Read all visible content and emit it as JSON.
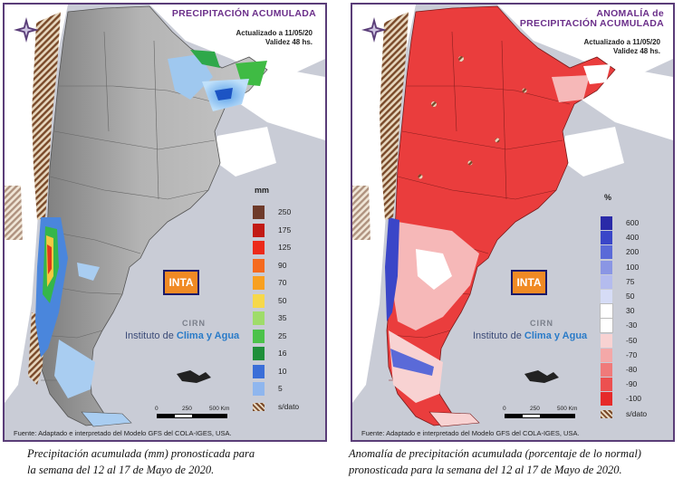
{
  "left_panel": {
    "title": "PRECIPITACIÓN ACUMULADA",
    "updated": "Actualizado a 11/05/20",
    "validity": "Validez 48 hs.",
    "legend_unit": "mm",
    "legend": [
      {
        "label": "250",
        "color": "#6e3a2a"
      },
      {
        "label": "175",
        "color": "#c21a14"
      },
      {
        "label": "125",
        "color": "#ec2a1a"
      },
      {
        "label": "90",
        "color": "#f56a1e"
      },
      {
        "label": "70",
        "color": "#f8a020"
      },
      {
        "label": "50",
        "color": "#f6d84a"
      },
      {
        "label": "35",
        "color": "#9fdc6a"
      },
      {
        "label": "25",
        "color": "#4cc24a"
      },
      {
        "label": "16",
        "color": "#1f8f3a"
      },
      {
        "label": "10",
        "color": "#3a6ed8"
      },
      {
        "label": "5",
        "color": "#8fb6ee"
      },
      {
        "label": "s/dato",
        "color": "hatch"
      }
    ],
    "logo_text": "INTA",
    "cirn": "CIRN",
    "institute_a": "Instituto de ",
    "institute_b": "Clima y Agua",
    "scale_labels": [
      "0",
      "250",
      "500 Km"
    ],
    "source": "Fuente: Adaptado e interpretado del Modelo GFS del COLA-IGES, USA.",
    "caption_line1": "Precipitación acumulada (mm) pronosticada para",
    "caption_line2": "la semana del 12 al 17 de Mayo de 2020."
  },
  "right_panel": {
    "title_line1": "ANOMALÍA de",
    "title_line2": "PRECIPITACIÓN ACUMULADA",
    "updated": "Actualizado a 11/05/20",
    "validity": "Validez 48 hs.",
    "legend_unit": "%",
    "legend": [
      {
        "label": "600",
        "color": "#2a2aa8"
      },
      {
        "label": "400",
        "color": "#3a46c8"
      },
      {
        "label": "200",
        "color": "#5a6ad8"
      },
      {
        "label": "100",
        "color": "#8a96e4"
      },
      {
        "label": "75",
        "color": "#b4bcee"
      },
      {
        "label": "50",
        "color": "#d6dcf6"
      },
      {
        "label": "30",
        "color": "#ffffff"
      },
      {
        "label": "-30",
        "color": "#ffffff"
      },
      {
        "label": "-50",
        "color": "#f8d2d2"
      },
      {
        "label": "-70",
        "color": "#f4a8a8"
      },
      {
        "label": "-80",
        "color": "#f07a7a"
      },
      {
        "label": "-90",
        "color": "#ec5050"
      },
      {
        "label": "-100",
        "color": "#e62a2a"
      },
      {
        "label": "s/dato",
        "color": "hatch"
      }
    ],
    "logo_text": "INTA",
    "cirn": "CIRN",
    "institute_a": "Instituto de ",
    "institute_b": "Clima y Agua",
    "scale_labels": [
      "0",
      "250",
      "500 Km"
    ],
    "source": "Fuente: Adaptado e interpretado del Modelo GFS del COLA-IGES, USA.",
    "caption_line1": "Anomalía de precipitación acumulada (porcentaje de lo normal)",
    "caption_line2": "pronosticada para la semana del 12 al 17 de Mayo de 2020."
  },
  "colors": {
    "frame": "#5a3d78",
    "title": "#6b2f8a",
    "sea": "#c9ccd6",
    "neighbor": "#ffffff",
    "terrain": "#a9a9a9",
    "anomaly": "#ea3d3d"
  }
}
